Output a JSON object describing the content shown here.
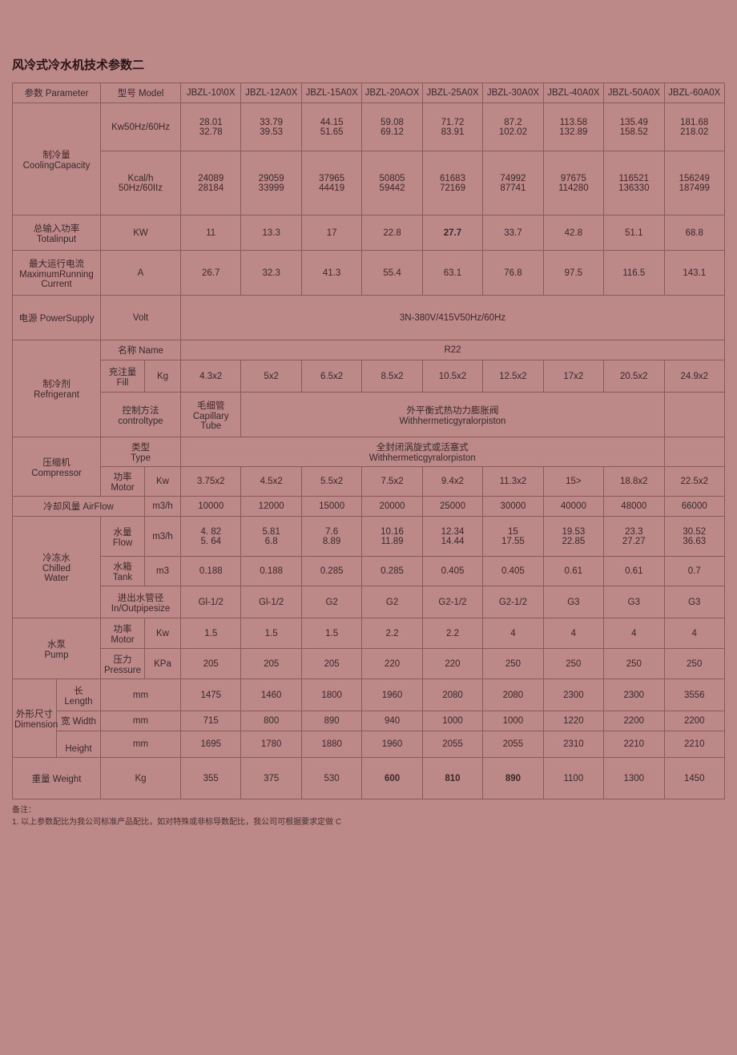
{
  "title": "风冷式冷水机技术参数二",
  "headers": {
    "param": "参数 Parameter",
    "model": "型号 Model",
    "models": [
      "JBZL-10\\0X",
      "JBZL-12A0X",
      "JBZL-15A0X",
      "JBZL-20AOX",
      "JBZL-25A0X",
      "JBZL-30A0X",
      "JBZL-40A0X",
      "JBZL-50A0X",
      "JBZL-60A0X"
    ]
  },
  "cooling": {
    "label_cn": "制冷量",
    "label_en": "CoolingCapacity",
    "kw_label": "Kw50Hz/60Hz",
    "kw_vals": [
      "28.01\n32.78",
      "33.79\n39.53",
      "44.15\n51.65",
      "59.08\n69.12",
      "71.72\n83.91",
      "87.2\n102.02",
      "113.58\n132.89",
      "135.49\n158.52",
      "181.68\n218.02"
    ],
    "kcal_label": "Kcal/h\n50Hz/60IIz",
    "kcal_vals": [
      "24089\n28184",
      "29059\n33999",
      "37965\n44419",
      "50805\n59442",
      "61683\n72169",
      "74992\n87741",
      "97675\n114280",
      "116521\n136330",
      "156249\n187499"
    ]
  },
  "totalInput": {
    "label_cn": "总输入功率",
    "label_en": "Totalinput",
    "unit": "KW",
    "vals": [
      "11",
      "13.3",
      "17",
      "22.8",
      "27.7",
      "33.7",
      "42.8",
      "51.1",
      "68.8"
    ]
  },
  "maxCurrent": {
    "label_cn": "最大运行电流",
    "label_en": "MaximumRunning\nCurrent",
    "unit": "A",
    "vals": [
      "26.7",
      "32.3",
      "41.3",
      "55.4",
      "63.1",
      "76.8",
      "97.5",
      "116.5",
      "143.1"
    ]
  },
  "power": {
    "label_cn": "电源 PowerSupply",
    "unit": "Volt",
    "val": "3N-380V/415V50Hz/60Hz"
  },
  "refrigerant": {
    "label_cn": "制冷剂",
    "label_en": "Refrigerant",
    "name_label": "名称 Name",
    "name_val": "R22",
    "fill_label_cn": "充注量",
    "fill_label_en": "Fill",
    "fill_unit": "Kg",
    "fill_vals": [
      "4.3x2",
      "5x2",
      "6.5x2",
      "8.5x2",
      "10.5x2",
      "12.5x2",
      "17x2",
      "20.5x2",
      "24.9x2"
    ],
    "ctrl_label": "控制方法 controltype",
    "ctrl_val_left": "毛细管\nCapillary\nTube",
    "ctrl_val_right": "外平衡式热功力膨胀阀\nWithhermeticgyralorpiston"
  },
  "compressor": {
    "label_cn": "压缩机",
    "label_en": "Compressor",
    "type_label": "类型\nType",
    "type_val": "全封闭涡旋式或活塞式\nWithhermeticgyralorpiston",
    "motor_label": "功率 Motor",
    "motor_unit": "Kw",
    "motor_vals": [
      "3.75x2",
      "4.5x2",
      "5.5x2",
      "7.5x2",
      "9.4x2",
      "11.3x2",
      "15>",
      "18.8x2",
      "22.5x2"
    ]
  },
  "airflow": {
    "label": "冷却风量 AirFlow",
    "unit": "m3/h",
    "vals": [
      "10000",
      "12000",
      "15000",
      "20000",
      "25000",
      "30000",
      "40000",
      "48000",
      "66000"
    ]
  },
  "chilled": {
    "label_cn": "冷冻水",
    "label_en": "Chilled\nWater",
    "flow_label": "水量 Flow",
    "flow_unit": "m3/h",
    "flow_vals": [
      "4. 82\n5. 64",
      "5.81\n6.8",
      "7.6\n8.89",
      "10.16\n11.89",
      "12.34\n14.44",
      "15\n17.55",
      "19.53\n22.85",
      "23.3\n27.27",
      "30.52\n36.63"
    ],
    "tank_label": "水箱 Tank",
    "tank_unit": "m3",
    "tank_vals": [
      "0.188",
      "0.188",
      "0.285",
      "0.285",
      "0.405",
      "0.405",
      "0.61",
      "0.61",
      "0.7"
    ],
    "pipe_label": "进出水管径\nIn/Outpipesize",
    "pipe_vals": [
      "Gl-1/2",
      "Gl-1/2",
      "G2",
      "G2",
      "G2-1/2",
      "G2-1/2",
      "G3",
      "G3",
      "G3"
    ]
  },
  "pump": {
    "label_cn": "水泵",
    "label_en": "Pump",
    "motor_label": "功率\nMotor",
    "motor_unit": "Kw",
    "motor_vals": [
      "1.5",
      "1.5",
      "1.5",
      "2.2",
      "2.2",
      "4",
      "4",
      "4",
      "4"
    ],
    "press_label": "压力\nPressure",
    "press_unit": "KPa",
    "press_vals": [
      "205",
      "205",
      "205",
      "220",
      "220",
      "250",
      "250",
      "250",
      "250"
    ]
  },
  "dimension": {
    "label_cn": "外形尺寸",
    "label_en": "Dimension",
    "len_label": "长\nLength",
    "len_unit": "mm",
    "len_vals": [
      "1475",
      "1460",
      "1800",
      "1960",
      "2080",
      "2080",
      "2300",
      "2300",
      "3556"
    ],
    "wid_label": "宽 Width",
    "wid_unit": "mm",
    "wid_vals": [
      "715",
      "800",
      "890",
      "940",
      "1000",
      "1000",
      "1220",
      "2200",
      "2200"
    ],
    "hei_label": "\nHeight",
    "hei_unit": "mm",
    "hei_vals": [
      "1695",
      "1780",
      "1880",
      "1960",
      "2055",
      "2055",
      "2310",
      "2210",
      "2210"
    ]
  },
  "weight": {
    "label": "重量 Weight",
    "unit": "Kg",
    "vals": [
      "355",
      "375",
      "530",
      "600",
      "810",
      "890",
      "1100",
      "1300",
      "1450"
    ]
  },
  "footnote": "备注：\n1. 以上参数配比为我公司标准产品配比，如对特殊或非标导数配比，我公司可根据要求定做 C"
}
